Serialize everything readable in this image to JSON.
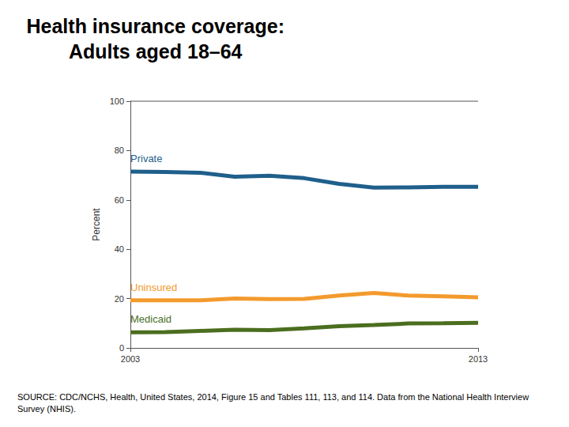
{
  "chart_data": {
    "type": "line",
    "title": "Health insurance coverage:\nAdults aged 18–64",
    "y_label": "Percent",
    "source": "SOURCE: CDC/NCHS, Health, United States, 2014, Figure 15 and Tables 111, 113, and 114. Data from the National Health Interview Survey (NHIS).",
    "categories": [
      "2003",
      null,
      null,
      null,
      null,
      null,
      null,
      null,
      null,
      null,
      "2013"
    ],
    "series": [
      {
        "name": "Private",
        "color": "#1f5f8b",
        "values": [
          71.5,
          71.3,
          71.0,
          69.4,
          69.8,
          68.8,
          66.5,
          65.0,
          65.1,
          65.3,
          65.3
        ]
      },
      {
        "name": "Uninsured",
        "color": "#f39a2e",
        "values": [
          19.3,
          19.3,
          19.3,
          20.0,
          19.8,
          19.9,
          21.2,
          22.3,
          21.2,
          20.9,
          20.5
        ]
      },
      {
        "name": "Medicaid",
        "color": "#4b6e1f",
        "values": [
          6.3,
          6.4,
          6.9,
          7.4,
          7.2,
          7.9,
          8.8,
          9.3,
          9.9,
          10.0,
          10.2
        ]
      }
    ],
    "ylim": [
      0,
      100
    ],
    "yticks": [
      0,
      20,
      40,
      60,
      80,
      100
    ],
    "grid": false
  }
}
